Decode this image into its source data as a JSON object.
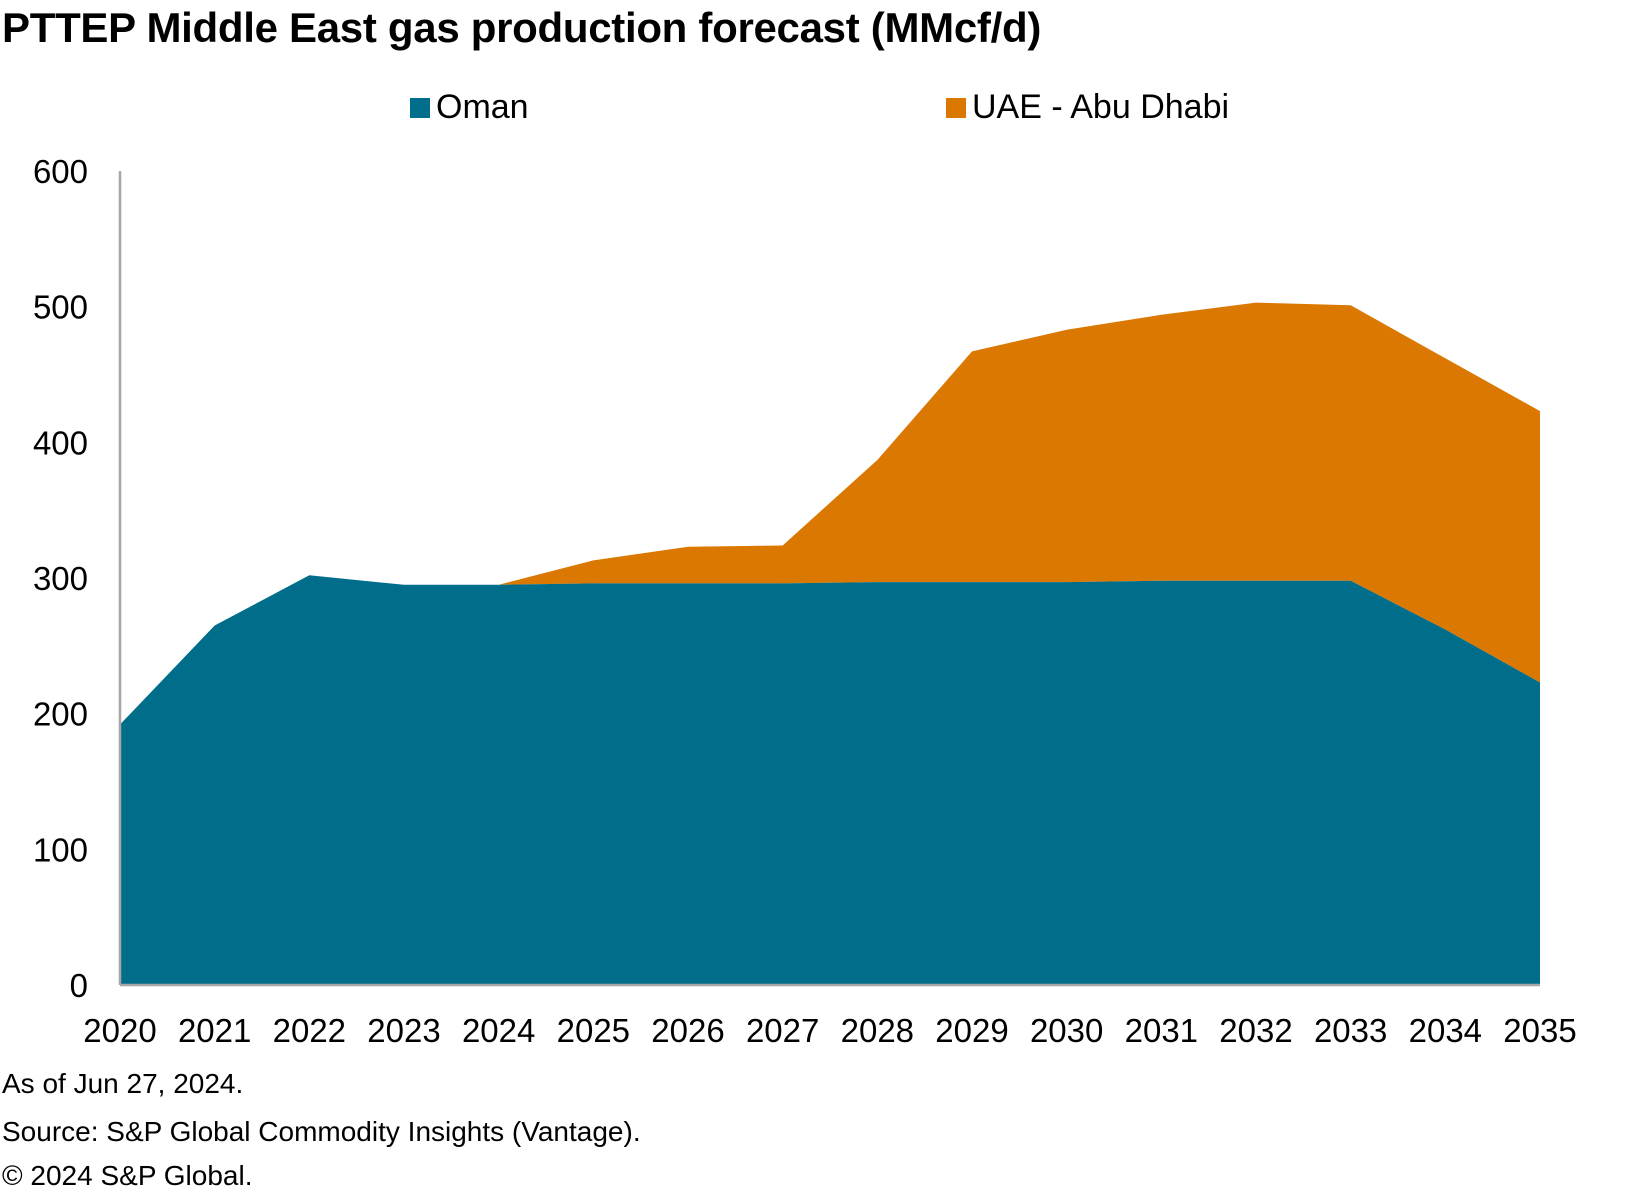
{
  "title": "PTTEP Middle East gas production forecast (MMcf/d)",
  "chart_data": {
    "type": "area",
    "stacked": true,
    "title": "PTTEP Middle East gas production forecast (MMcf/d)",
    "xlabel": "",
    "ylabel": "",
    "x": [
      "2020",
      "2021",
      "2022",
      "2023",
      "2024",
      "2025",
      "2026",
      "2027",
      "2028",
      "2029",
      "2030",
      "2031",
      "2032",
      "2033",
      "2034",
      "2035"
    ],
    "ylim": [
      0,
      600
    ],
    "yticks": [
      0,
      100,
      200,
      300,
      400,
      500,
      600
    ],
    "grid": false,
    "legend_position": "top",
    "series": [
      {
        "name": "Oman",
        "color": "#006E8A",
        "values": [
          192,
          265,
          302,
          295,
          295,
          296,
          296,
          296,
          297,
          297,
          297,
          298,
          298,
          298,
          262,
          223
        ]
      },
      {
        "name": "UAE - Abu Dhabi",
        "color": "#DB7801",
        "values": [
          0,
          0,
          0,
          0,
          0,
          17,
          27,
          28,
          90,
          170,
          186,
          196,
          205,
          203,
          200,
          200
        ]
      }
    ]
  },
  "footer": {
    "as_of": "As of Jun 27, 2024.",
    "source": "Source: S&P Global Commodity Insights (Vantage).",
    "copyright": "© 2024 S&P Global."
  }
}
